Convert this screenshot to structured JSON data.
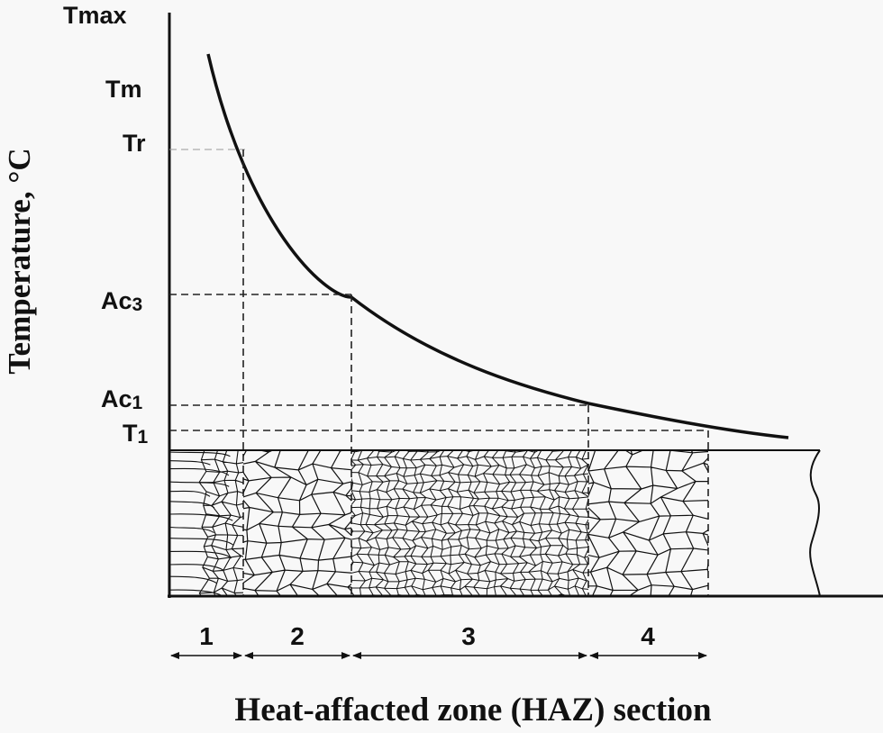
{
  "y_axis": {
    "title": "Temperature, °C",
    "levels": [
      {
        "main": "Tmax",
        "sub": ""
      },
      {
        "main": "Tm",
        "sub": ""
      },
      {
        "main": "Tr",
        "sub": ""
      },
      {
        "main": "Ac",
        "sub": "3"
      },
      {
        "main": "Ac",
        "sub": "1"
      },
      {
        "main": "T",
        "sub": "1"
      }
    ]
  },
  "zones": [
    {
      "label": "1",
      "microstructure": "columnar"
    },
    {
      "label": "2",
      "microstructure": "coarse-grain"
    },
    {
      "label": "3",
      "microstructure": "fine-grain"
    },
    {
      "label": "4",
      "microstructure": "partial-recrystallized"
    }
  ],
  "x_axis": {
    "title": "Heat-affacted zone (HAZ) section"
  },
  "colors": {
    "ink": "#111111",
    "background": "#f8f8f8",
    "dash": "#222222"
  }
}
